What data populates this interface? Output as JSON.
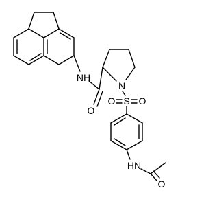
{
  "atoms": {
    "amide_nh": "NH",
    "amide_o": "O",
    "ring_n": "N",
    "sulfur": "S",
    "sulfonyl_o_left": "O",
    "sulfonyl_o_right": "O",
    "acetamide_nh": "HN",
    "acetyl_o": "O"
  }
}
